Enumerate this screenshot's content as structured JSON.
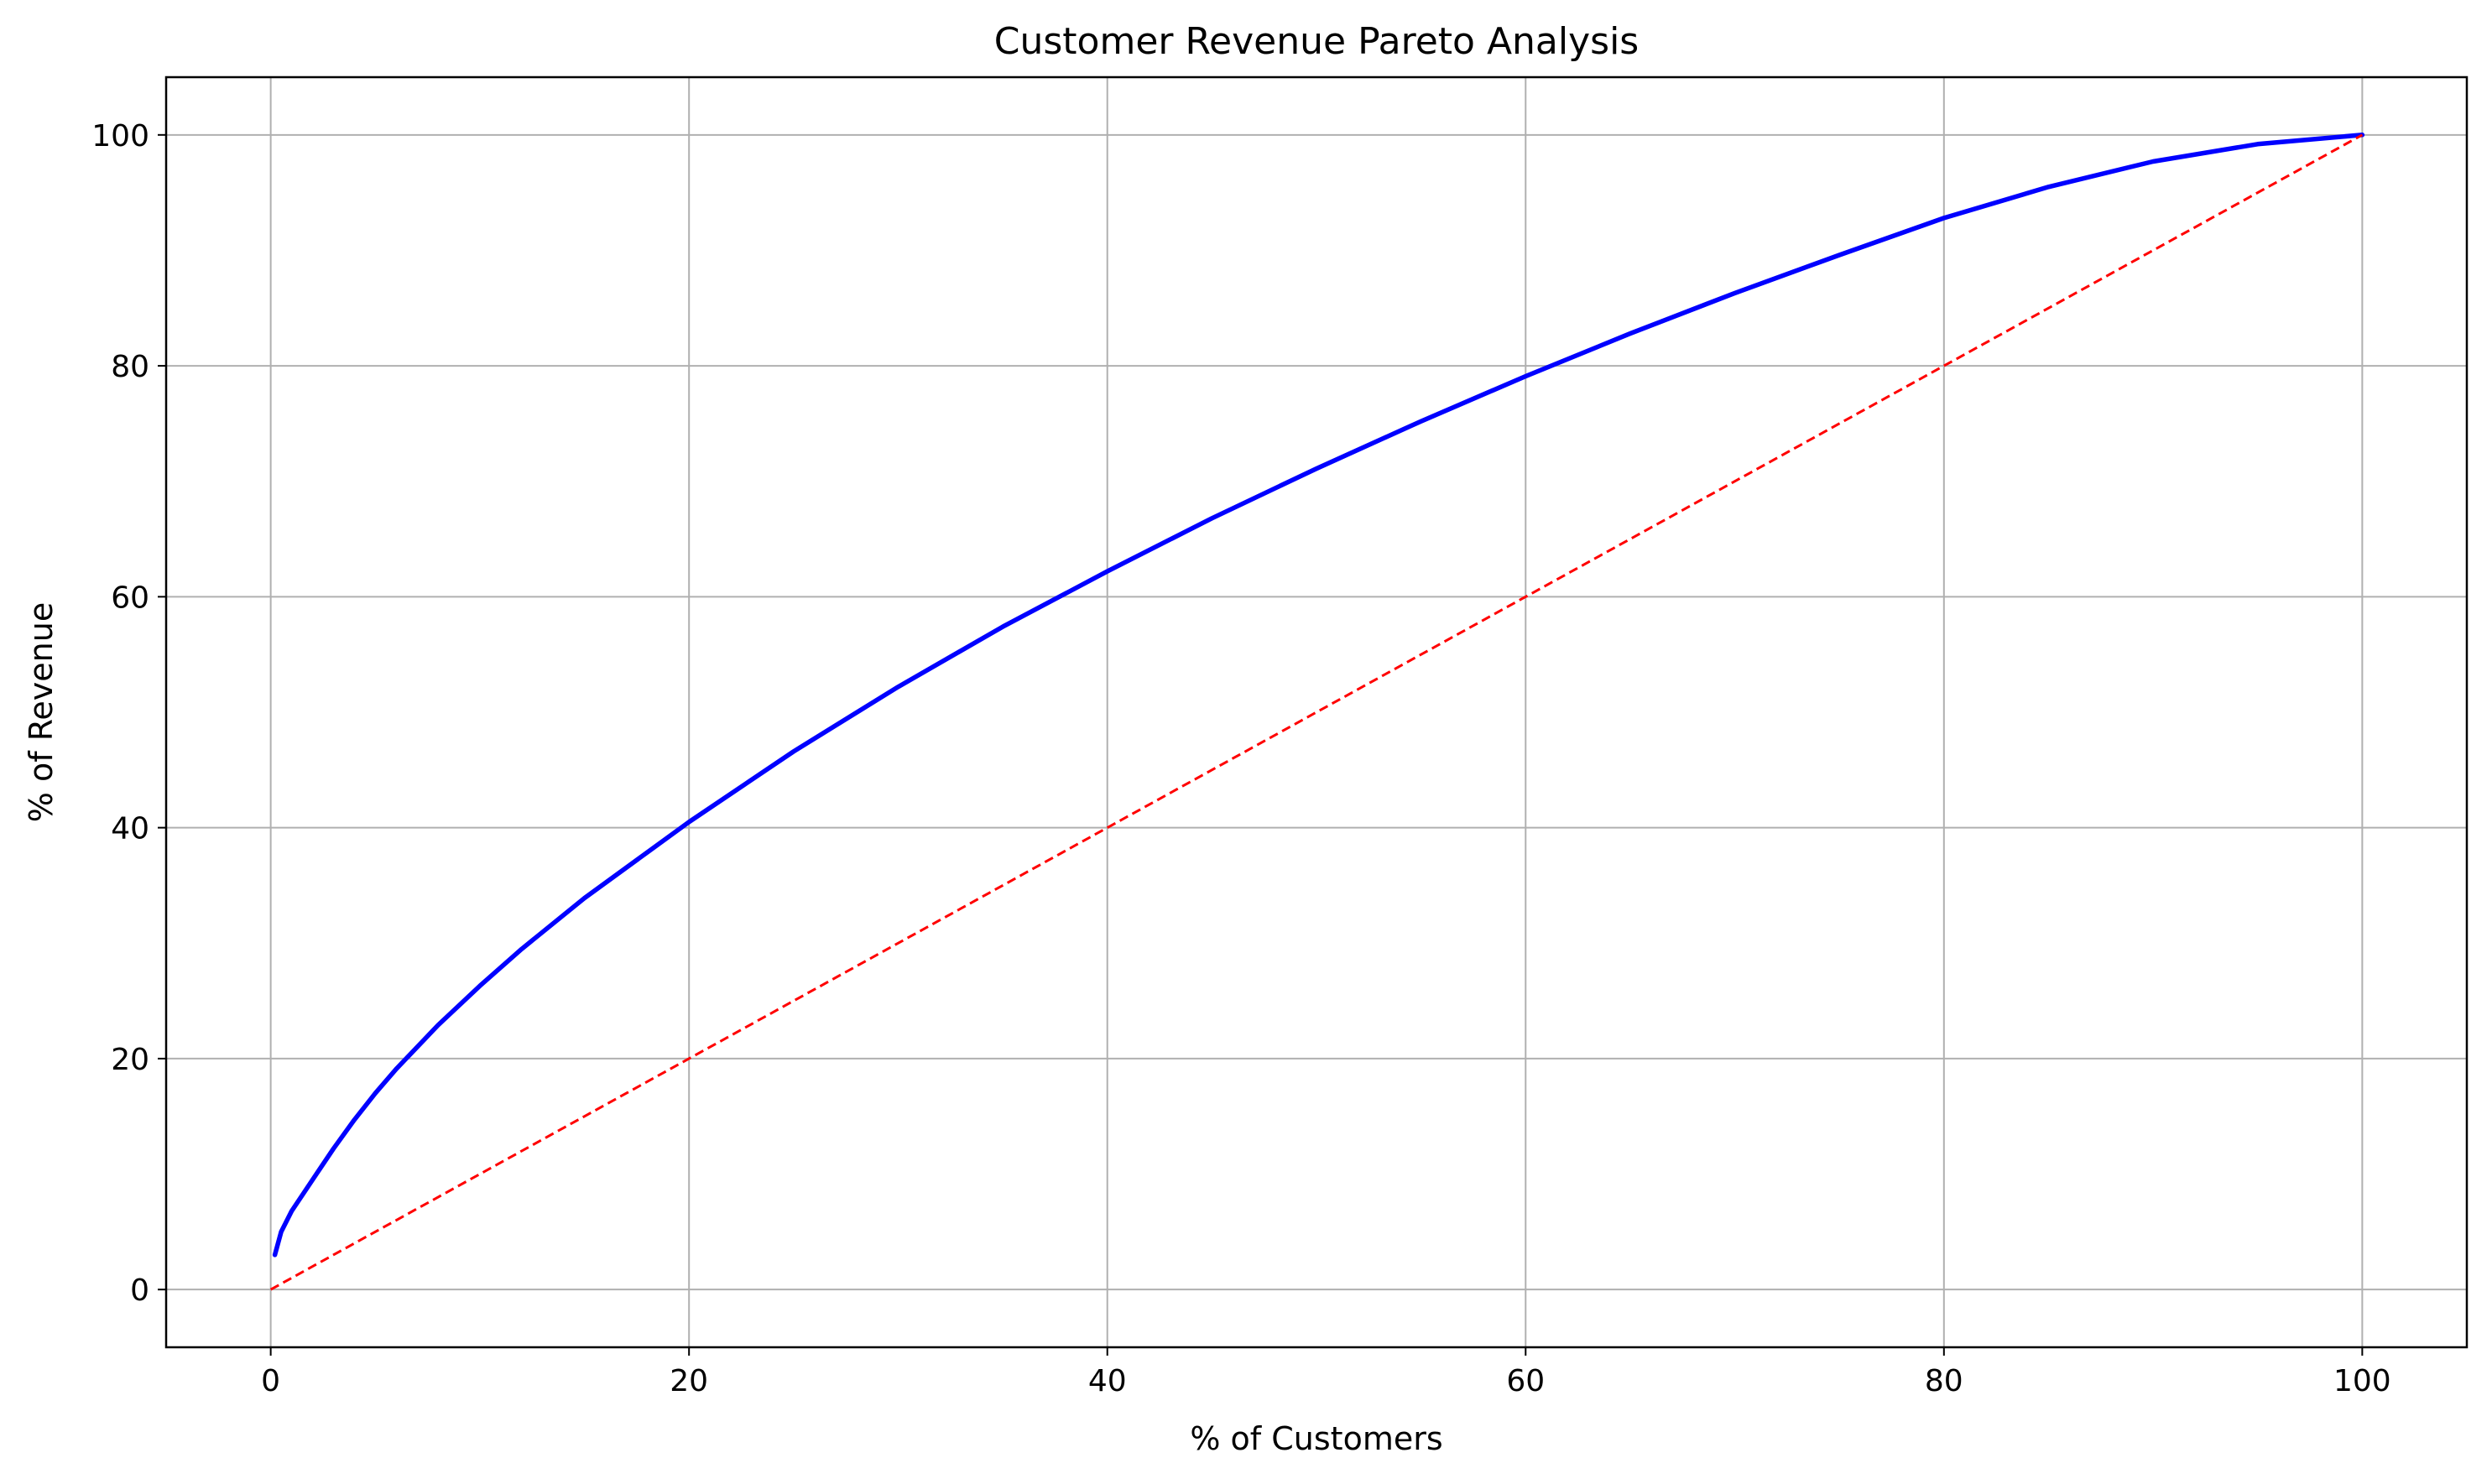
{
  "chart_data": {
    "type": "line",
    "title": "Customer Revenue Pareto Analysis",
    "xlabel": "% of Customers",
    "ylabel": "% of Revenue",
    "xlim": [
      -5,
      105
    ],
    "ylim": [
      -5,
      105
    ],
    "xticks": [
      0,
      20,
      40,
      60,
      80,
      100
    ],
    "yticks": [
      0,
      20,
      40,
      60,
      80,
      100
    ],
    "grid": true,
    "series": [
      {
        "color": "#0000ff",
        "style": "solid",
        "x": [
          0.2,
          0.5,
          1,
          2,
          3,
          4,
          5,
          6,
          8,
          10,
          12,
          15,
          20,
          25,
          30,
          35,
          40,
          45,
          50,
          55,
          60,
          65,
          70,
          75,
          80,
          85,
          90,
          95,
          100
        ],
        "y": [
          3,
          5,
          6.8,
          9.5,
          12.2,
          14.7,
          17.0,
          19.1,
          22.9,
          26.3,
          29.5,
          33.9,
          40.5,
          46.6,
          52.2,
          57.4,
          62.2,
          66.8,
          71.1,
          75.2,
          79.1,
          82.8,
          86.3,
          89.6,
          92.8,
          95.5,
          97.7,
          99.2,
          100
        ]
      },
      {
        "color": "#ff0000",
        "style": "dashed",
        "x": [
          0,
          100
        ],
        "y": [
          0,
          100
        ]
      }
    ]
  }
}
